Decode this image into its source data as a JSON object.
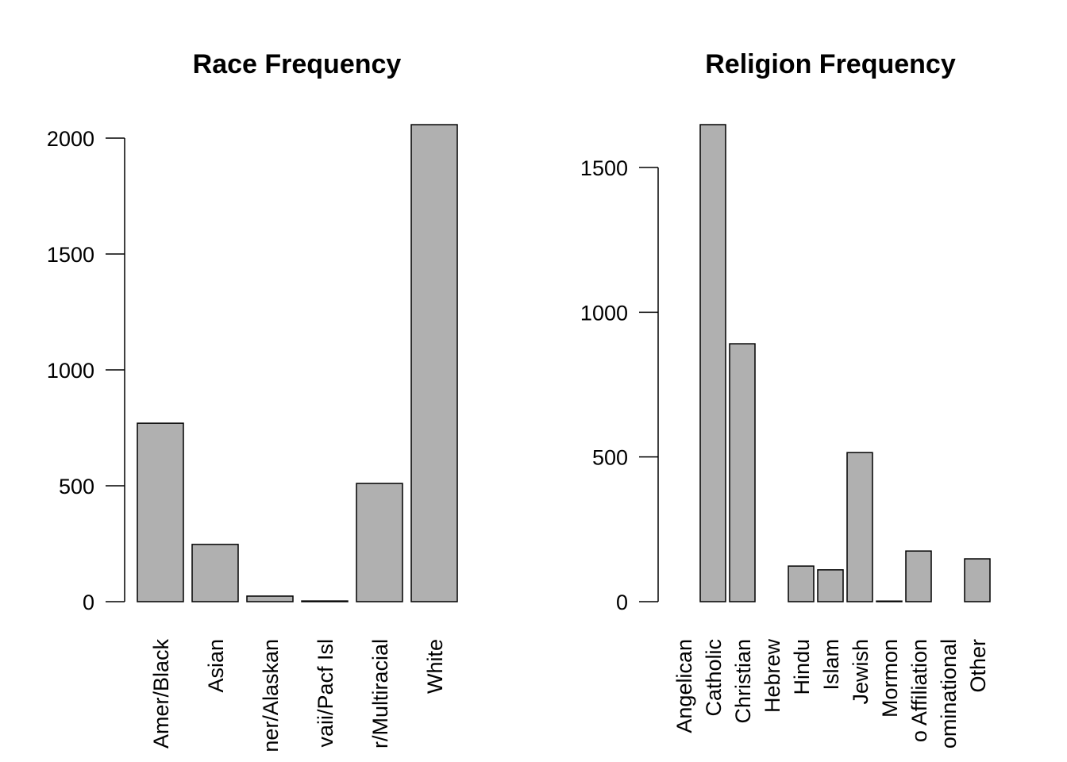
{
  "chart_data": [
    {
      "type": "bar",
      "title": "Race Frequency",
      "categories": [
        "Amer/Black",
        "Asian",
        "ner/Alaskan",
        "vaii/Pacf Isl",
        "r/Multiracial",
        "White"
      ],
      "values": [
        770,
        247,
        24,
        3,
        510,
        2058
      ],
      "color": "#b0b0b0",
      "ylim": [
        0,
        2000
      ],
      "yticks": [
        0,
        500,
        1000,
        1500,
        2000
      ]
    },
    {
      "type": "bar",
      "title": "Religion Frequency",
      "categories": [
        "Angelican",
        "Catholic",
        "Christian",
        "Hebrew",
        "Hindu",
        "Islam",
        "Jewish",
        "Mormon",
        "o Affiliation",
        "ominational",
        "Other"
      ],
      "values": [
        0,
        1648,
        891,
        0,
        123,
        110,
        515,
        2,
        175,
        0,
        148
      ],
      "color": "#b0b0b0",
      "ylim": [
        0,
        1500
      ],
      "yticks": [
        0,
        500,
        1000,
        1500
      ]
    }
  ]
}
